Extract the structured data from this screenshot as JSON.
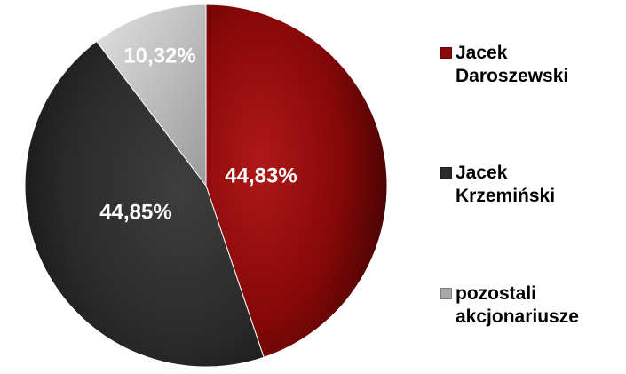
{
  "chart_data": {
    "type": "pie",
    "title": "",
    "slices": [
      {
        "name": "Jacek Daroszewski",
        "value": 44.83,
        "label": "44,83%",
        "color": "#8b0a0a"
      },
      {
        "name": "Jacek Krzemiński",
        "value": 44.85,
        "label": "44,85%",
        "color": "#2b2b2b"
      },
      {
        "name": "pozostali akcjonariusze",
        "value": 10.32,
        "label": "10,32%",
        "color": "#b0b0b0"
      }
    ],
    "start": "12 o'clock",
    "direction": "clockwise",
    "legend": "right"
  },
  "legend": {
    "items": [
      {
        "label": "Jacek Daroszewski",
        "color": "#8b0a0a"
      },
      {
        "label": "Jacek Krzemiński",
        "color": "#2b2b2b"
      },
      {
        "label": "pozostali akcjonariusze",
        "color": "#a8a8a8"
      }
    ]
  }
}
